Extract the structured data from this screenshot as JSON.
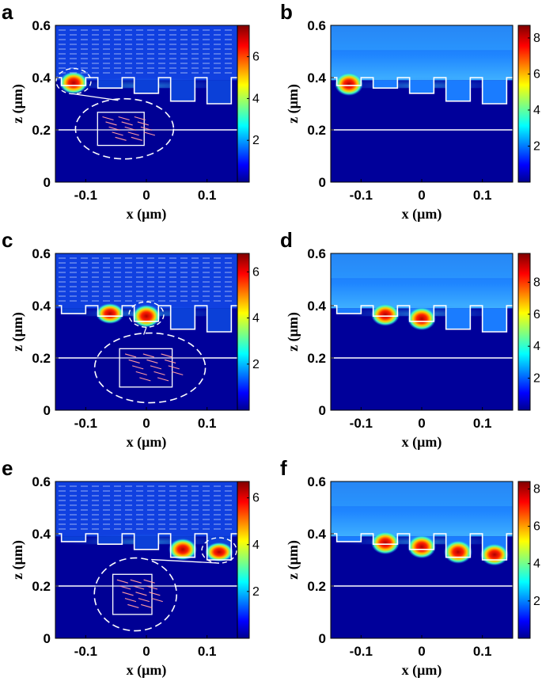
{
  "chart_data": [
    {
      "panel": "a",
      "type": "heatmap",
      "xlabel": "x (μm)",
      "ylabel": "z (μm)",
      "xlim": [
        -0.15,
        0.15
      ],
      "ylim": [
        0,
        0.6
      ],
      "xticks": [
        "-0.1",
        "0",
        "0.1"
      ],
      "yticks": [
        "0",
        "0.2",
        "0.4",
        "0.6"
      ],
      "colorbar": {
        "range": [
          0,
          7.5
        ],
        "ticks": [
          "2",
          "4",
          "6"
        ]
      },
      "hotspots": [
        {
          "x": -0.12,
          "z": 0.38,
          "value": 7
        }
      ],
      "arrows": true,
      "inset": true
    },
    {
      "panel": "b",
      "type": "heatmap",
      "xlabel": "x (μm)",
      "ylabel": "z (μm)",
      "xlim": [
        -0.15,
        0.15
      ],
      "ylim": [
        0,
        0.6
      ],
      "xticks": [
        "-0.1",
        "0",
        "0.1"
      ],
      "yticks": [
        "0",
        "0.2",
        "0.4",
        "0.6"
      ],
      "colorbar": {
        "range": [
          0,
          8.7
        ],
        "ticks": [
          "2",
          "4",
          "6",
          "8"
        ]
      },
      "hotspots": [
        {
          "x": -0.12,
          "z": 0.375,
          "value": 8.5
        }
      ],
      "arrows": false,
      "inset": false
    },
    {
      "panel": "c",
      "type": "heatmap",
      "xlabel": "x (μm)",
      "ylabel": "z (μm)",
      "xlim": [
        -0.15,
        0.15
      ],
      "ylim": [
        0,
        0.6
      ],
      "xticks": [
        "-0.1",
        "0",
        "0.1"
      ],
      "yticks": [
        "0",
        "0.2",
        "0.4",
        "0.6"
      ],
      "colorbar": {
        "range": [
          0,
          6.8
        ],
        "ticks": [
          "2",
          "4",
          "6"
        ]
      },
      "hotspots": [
        {
          "x": -0.06,
          "z": 0.37,
          "value": 5.5
        },
        {
          "x": 0.0,
          "z": 0.36,
          "value": 6.5
        }
      ],
      "arrows": true,
      "inset": true
    },
    {
      "panel": "d",
      "type": "heatmap",
      "xlabel": "x (μm)",
      "ylabel": "z (μm)",
      "xlim": [
        -0.15,
        0.15
      ],
      "ylim": [
        0,
        0.6
      ],
      "xticks": [
        "-0.1",
        "0",
        "0.1"
      ],
      "yticks": [
        "0",
        "0.2",
        "0.4",
        "0.6"
      ],
      "colorbar": {
        "range": [
          0,
          9.8
        ],
        "ticks": [
          "2",
          "4",
          "6",
          "8"
        ]
      },
      "hotspots": [
        {
          "x": -0.06,
          "z": 0.365,
          "value": 9
        },
        {
          "x": 0.0,
          "z": 0.35,
          "value": 9.5
        }
      ],
      "arrows": false,
      "inset": false
    },
    {
      "panel": "e",
      "type": "heatmap",
      "xlabel": "x (μm)",
      "ylabel": "z (μm)",
      "xlim": [
        -0.15,
        0.15
      ],
      "ylim": [
        0,
        0.6
      ],
      "xticks": [
        "-0.1",
        "0",
        "0.1"
      ],
      "yticks": [
        "0",
        "0.2",
        "0.4",
        "0.6"
      ],
      "colorbar": {
        "range": [
          0,
          6.7
        ],
        "ticks": [
          "2",
          "4",
          "6"
        ]
      },
      "hotspots": [
        {
          "x": 0.06,
          "z": 0.34,
          "value": 6
        },
        {
          "x": 0.12,
          "z": 0.33,
          "value": 5
        }
      ],
      "arrows": true,
      "inset": true
    },
    {
      "panel": "f",
      "type": "heatmap",
      "xlabel": "x (μm)",
      "ylabel": "z (μm)",
      "xlim": [
        -0.15,
        0.15
      ],
      "ylim": [
        0,
        0.6
      ],
      "xticks": [
        "-0.1",
        "0",
        "0.1"
      ],
      "yticks": [
        "0",
        "0.2",
        "0.4",
        "0.6"
      ],
      "colorbar": {
        "range": [
          0,
          8.4
        ],
        "ticks": [
          "2",
          "4",
          "6",
          "8"
        ]
      },
      "hotspots": [
        {
          "x": -0.06,
          "z": 0.365,
          "value": 8
        },
        {
          "x": 0.0,
          "z": 0.35,
          "value": 8.2
        },
        {
          "x": 0.06,
          "z": 0.33,
          "value": 8.2
        },
        {
          "x": 0.12,
          "z": 0.32,
          "value": 7.5
        }
      ],
      "arrows": false,
      "inset": false
    }
  ],
  "grating": {
    "surface_z": 0.39,
    "ridge_z": 0.4,
    "interface_z": 0.2,
    "grooves": [
      {
        "x": -0.12,
        "width": 0.04,
        "depth_z": 0.37
      },
      {
        "x": -0.06,
        "width": 0.04,
        "depth_z": 0.36
      },
      {
        "x": 0.0,
        "width": 0.04,
        "depth_z": 0.34
      },
      {
        "x": 0.06,
        "width": 0.04,
        "depth_z": 0.31
      },
      {
        "x": 0.12,
        "width": 0.04,
        "depth_z": 0.3
      }
    ]
  },
  "colors": {
    "background": "#0a1fb8",
    "field_top": "#1e78ff",
    "line": "#ffffff"
  }
}
